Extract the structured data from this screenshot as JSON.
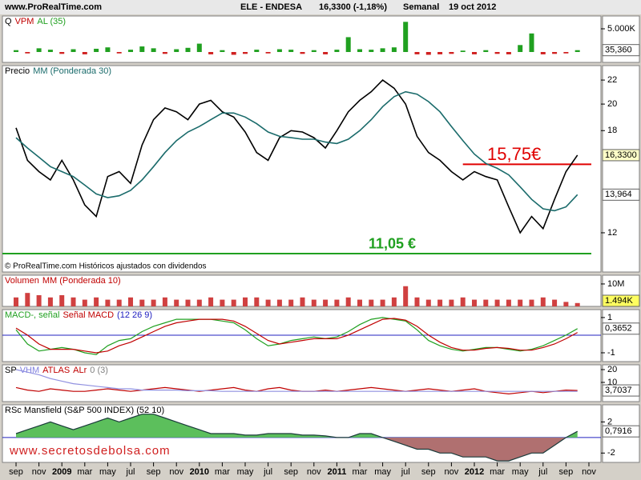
{
  "header": {
    "site": "www.ProRealTime.com",
    "instrument": "ELE - ENDESA",
    "quote": "16,3300 (-1,18%)",
    "period": "Semanal",
    "date": "19 oct 2012"
  },
  "watermark": "www.secretosdebolsa.com",
  "copyright": "© ProRealTime.com Históricos ajustados con dividendos",
  "chart_data": {
    "type": "stock",
    "x": [
      0,
      1,
      2,
      3,
      4,
      5,
      6,
      7,
      8,
      9,
      10,
      11,
      12,
      13,
      14,
      15,
      16,
      17,
      18,
      19,
      20,
      21,
      22,
      23,
      24,
      25,
      26,
      27,
      28,
      29,
      30,
      31,
      32,
      33,
      34,
      35,
      36,
      37,
      38,
      39,
      40,
      41,
      42,
      43,
      44,
      45,
      46,
      47,
      48,
      49
    ],
    "xlim": [
      -1.19,
      51.05
    ],
    "xticks": [
      {
        "value": 0,
        "label": "sep"
      },
      {
        "value": 2,
        "label": "nov"
      },
      {
        "value": 4,
        "label": "2009"
      },
      {
        "value": 6,
        "label": "mar"
      },
      {
        "value": 8,
        "label": "may"
      },
      {
        "value": 10,
        "label": "jul"
      },
      {
        "value": 12,
        "label": "sep"
      },
      {
        "value": 14,
        "label": "nov"
      },
      {
        "value": 16,
        "label": "2010"
      },
      {
        "value": 18,
        "label": "mar"
      },
      {
        "value": 20,
        "label": "may"
      },
      {
        "value": 22,
        "label": "jul"
      },
      {
        "value": 24,
        "label": "sep"
      },
      {
        "value": 26,
        "label": "nov"
      },
      {
        "value": 28,
        "label": "2011"
      },
      {
        "value": 30,
        "label": "mar"
      },
      {
        "value": 32,
        "label": "may"
      },
      {
        "value": 34,
        "label": "jul"
      },
      {
        "value": 36,
        "label": "sep"
      },
      {
        "value": 38,
        "label": "nov"
      },
      {
        "value": 40,
        "label": "2012"
      },
      {
        "value": 42,
        "label": "mar"
      },
      {
        "value": 44,
        "label": "may"
      },
      {
        "value": 46,
        "label": "jul"
      },
      {
        "value": 48,
        "label": "sep"
      },
      {
        "value": 50,
        "label": "nov"
      }
    ],
    "panels": [
      {
        "type": "bar",
        "title": [
          {
            "text": "Q",
            "color": "#000000"
          },
          {
            "text": "VPM",
            "color": "#c00000"
          },
          {
            "text": "AL (35)",
            "color": "#20a020"
          }
        ],
        "ylim": [
          -2.24,
          7.76
        ],
        "yticks": [
          {
            "value": 5,
            "label": "5.000K"
          }
        ],
        "last_label": "35,360",
        "label_fill": "#ffffff",
        "series": [
          {
            "color": "#20a020",
            "down_color": "#d02020",
            "values": [
              0.4,
              -0.3,
              0.8,
              0.5,
              -0.4,
              0.6,
              -0.5,
              0.7,
              1,
              -0.3,
              0.5,
              1.2,
              0.8,
              -0.4,
              0.6,
              0.9,
              1.8,
              -0.5,
              0.4,
              -0.6,
              -0.4,
              0.5,
              -0.3,
              0.6,
              0.5,
              -0.4,
              0.4,
              -0.5,
              0.5,
              3.2,
              0.6,
              0.5,
              0.8,
              1,
              6.5,
              -0.5,
              -0.6,
              -0.5,
              -0.4,
              0.3,
              -0.5,
              0.4,
              -0.4,
              -0.5,
              1.5,
              4,
              -0.5,
              -0.4,
              -0.3,
              0.4
            ]
          }
        ]
      },
      {
        "type": "line",
        "log": true,
        "title": [
          {
            "text": "Precio",
            "color": "#000000"
          },
          {
            "text": "MM (Ponderada 30)",
            "color": "#1a6b6b"
          }
        ],
        "ylim": [
          10.27,
          23.3
        ],
        "yticks": [
          12,
          18,
          20,
          22
        ],
        "last_label": "16,3300",
        "label_fill": "#ffffc8",
        "second_label": "13,964",
        "series": [
          {
            "color": "#000000",
            "values": [
              18.2,
              16,
              15.3,
              14.8,
              16,
              14.8,
              13.4,
              12.8,
              15,
              15.3,
              14.6,
              17,
              18.8,
              19.7,
              19.4,
              18.8,
              20,
              20.3,
              19.4,
              19,
              17.9,
              16.5,
              16,
              17.5,
              18,
              17.9,
              17.5,
              16.8,
              18,
              19.4,
              20.3,
              21,
              22,
              21.3,
              20,
              17.6,
              16.5,
              16,
              15.3,
              14.8,
              15.3,
              15,
              14.8,
              13.3,
              12,
              12.8,
              12.2,
              13.7,
              15.3,
              16.33
            ]
          },
          {
            "color": "#1a6b6b",
            "values": [
              17.5,
              16.8,
              16.2,
              15.6,
              15.3,
              15,
              14.5,
              14,
              13.8,
              13.9,
              14.2,
              14.8,
              15.6,
              16.5,
              17.3,
              17.9,
              18.3,
              18.8,
              19.3,
              19.3,
              19,
              18.5,
              17.9,
              17.6,
              17.5,
              17.4,
              17.4,
              17.2,
              17.1,
              17.4,
              18,
              18.8,
              19.8,
              20.6,
              21,
              20.8,
              20.2,
              19.4,
              18.3,
              17.3,
              16.4,
              15.8,
              15.5,
              15.1,
              14.4,
              13.7,
              13.2,
              13.1,
              13.3,
              13.96
            ]
          }
        ],
        "hlines": [
          {
            "value": 15.75,
            "label": "15,75€",
            "color": "#e00000",
            "from": 39
          },
          {
            "value": 11.05,
            "label": "11,05 €",
            "color": "#20a020",
            "from": -1.19
          }
        ]
      },
      {
        "type": "bar",
        "title": [
          {
            "text": "Volumen",
            "color": "#c00000"
          },
          {
            "text": "MM (Ponderada 10)",
            "color": "#c00000"
          }
        ],
        "ylim": [
          0,
          13.9
        ],
        "yticks": [
          {
            "value": 10,
            "label": "10M"
          }
        ],
        "last_label": "1.494K",
        "label_fill": "#ffff60",
        "series": [
          {
            "color": "#d04040",
            "down_color": "#d04040",
            "values": [
              4,
              6,
              5,
              4,
              5,
              4,
              3,
              4,
              3,
              3,
              4,
              3,
              3,
              4,
              3,
              3,
              3,
              4,
              3,
              3,
              4,
              4,
              3,
              3,
              3,
              4,
              3,
              3,
              3,
              4,
              3,
              3,
              3,
              4,
              9,
              4,
              3,
              3,
              3,
              4,
              3,
              3,
              3,
              3,
              3,
              3,
              4,
              3,
              2,
              1.5
            ]
          }
        ]
      },
      {
        "type": "line",
        "title": [
          {
            "text": "MACD-, señal",
            "color": "#20a020"
          },
          {
            "text": "Señal MACD",
            "color": "#c00000"
          },
          {
            "text": "(12 26 9)",
            "color": "#2020c0"
          }
        ],
        "ylim": [
          -1.5,
          1.45
        ],
        "yticks": [
          1,
          -1
        ],
        "last_label": "0,3652",
        "label_fill": "#ffffff",
        "zero_line": true,
        "series": [
          {
            "color": "#20a020",
            "values": [
              0.3,
              -0.5,
              -0.9,
              -0.8,
              -0.7,
              -0.8,
              -1,
              -1.1,
              -0.6,
              -0.3,
              -0.2,
              0.2,
              0.5,
              0.7,
              0.9,
              0.9,
              0.9,
              0.9,
              0.8,
              0.7,
              0.3,
              -0.2,
              -0.6,
              -0.5,
              -0.3,
              -0.2,
              -0.1,
              -0.2,
              -0.1,
              0.2,
              0.6,
              0.9,
              1,
              0.9,
              0.8,
              0.3,
              -0.3,
              -0.6,
              -0.8,
              -0.9,
              -0.8,
              -0.7,
              -0.7,
              -0.8,
              -0.9,
              -0.8,
              -0.6,
              -0.3,
              0,
              0.37
            ]
          },
          {
            "color": "#c00000",
            "values": [
              0.4,
              0,
              -0.5,
              -0.8,
              -0.8,
              -0.8,
              -0.9,
              -1,
              -0.9,
              -0.6,
              -0.4,
              -0.1,
              0.2,
              0.5,
              0.7,
              0.8,
              0.9,
              0.9,
              0.9,
              0.8,
              0.5,
              0.1,
              -0.3,
              -0.5,
              -0.4,
              -0.3,
              -0.2,
              -0.2,
              -0.2,
              0,
              0.3,
              0.6,
              0.9,
              0.95,
              0.85,
              0.5,
              0,
              -0.4,
              -0.7,
              -0.85,
              -0.85,
              -0.75,
              -0.7,
              -0.75,
              -0.85,
              -0.85,
              -0.7,
              -0.5,
              -0.2,
              0.15
            ]
          }
        ]
      },
      {
        "type": "line",
        "title": [
          {
            "text": "SP",
            "color": "#000000"
          },
          {
            "text": "VHM",
            "color": "#8080e0"
          },
          {
            "text": "ATLAS",
            "color": "#c00000"
          },
          {
            "text": "ALr",
            "color": "#c00000"
          },
          {
            "text": "0 (3)",
            "color": "#808080"
          }
        ],
        "ylim": [
          -5,
          23.75
        ],
        "yticks": [
          20,
          10
        ],
        "last_label": "3,7037",
        "label_fill": "#ffffff",
        "series": [
          {
            "color": "#c00000",
            "values": [
              6,
              4,
              3,
              5,
              4,
              3,
              3,
              4,
              5,
              4,
              3,
              4,
              5,
              6,
              5,
              4,
              3,
              4,
              5,
              6,
              4,
              3,
              5,
              6,
              4,
              3,
              3,
              4,
              3,
              4,
              5,
              6,
              5,
              4,
              3,
              4,
              5,
              4,
              3,
              4,
              5,
              3,
              2,
              1,
              2,
              3,
              2,
              3,
              4,
              3.7
            ]
          },
          {
            "color": "#9090e0",
            "values": [
              20,
              18,
              16,
              13,
              11,
              9,
              8,
              7,
              6,
              5,
              5,
              4,
              4,
              4,
              4,
              3.5,
              3.5,
              3.5,
              3,
              3,
              3,
              3,
              3,
              3,
              3,
              3,
              3,
              3,
              3,
              3,
              3,
              3,
              3,
              3,
              3,
              3,
              3,
              3,
              3,
              3,
              3,
              3,
              3,
              3,
              3,
              3,
              3,
              3,
              3,
              3
            ]
          }
        ]
      },
      {
        "type": "area",
        "title": [
          {
            "text": "RSc Mansfield (S&P 500 INDEX) (52 10)",
            "color": "#000000"
          }
        ],
        "ylim": [
          -3.2,
          4.2
        ],
        "yticks": [
          2,
          -2
        ],
        "last_label": "0,7916",
        "label_fill": "#ffffff",
        "zero_line": true,
        "series": [
          {
            "color": "#1a3a3a",
            "up_color": "#5cbf5c",
            "down_color": "#b07070",
            "values": [
              0.5,
              1,
              1.5,
              2,
              1.5,
              1,
              1.5,
              2,
              2.5,
              2,
              2.5,
              3,
              3,
              2.5,
              2,
              1.5,
              1,
              0.5,
              0.5,
              0.5,
              0.3,
              0.3,
              0.5,
              0.5,
              0.5,
              0.3,
              0.3,
              0.2,
              0,
              0,
              0.5,
              0.5,
              0,
              -0.5,
              -1,
              -1.5,
              -1.5,
              -2,
              -2,
              -2.5,
              -2.5,
              -2.5,
              -3,
              -3,
              -2.5,
              -2,
              -2,
              -1,
              0,
              0.79
            ]
          }
        ]
      }
    ]
  }
}
